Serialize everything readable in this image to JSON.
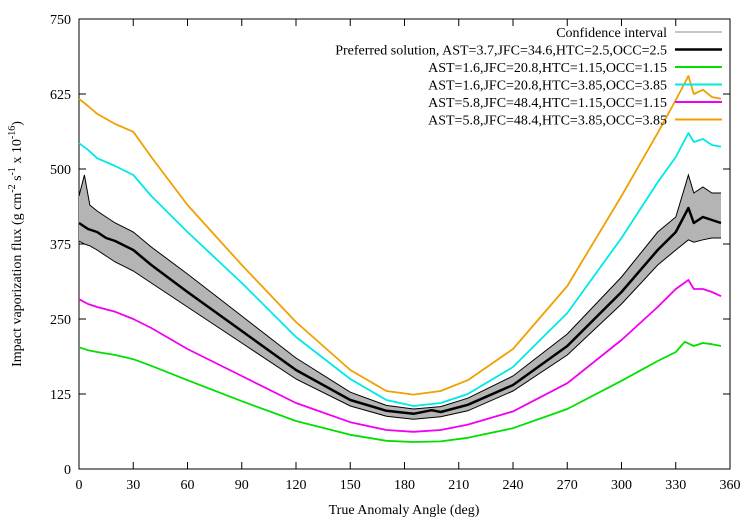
{
  "chart_data": {
    "type": "line",
    "xlabel": "True Anomaly Angle (deg)",
    "ylabel": "Impact vaporization flux (g cm",
    "ylabel_parts": {
      "a": "Impact vaporization flux (g cm",
      "exp1": "-2",
      "b": " s",
      "exp2": "-1",
      "c": " x 10",
      "exp3": "-16",
      "d": ")"
    },
    "xlim": [
      0,
      360
    ],
    "ylim": [
      0,
      750
    ],
    "xticks": [
      0,
      30,
      60,
      90,
      120,
      150,
      180,
      210,
      240,
      270,
      300,
      330,
      360
    ],
    "xtick_labels": [
      "0",
      "30",
      "60",
      "90",
      "120",
      "150",
      "180",
      "210",
      "240",
      "270",
      "300",
      "330",
      "360"
    ],
    "yticks": [
      0,
      125,
      250,
      375,
      500,
      625,
      750
    ],
    "ytick_labels": [
      "0",
      "125",
      "250",
      "375",
      "500",
      "625",
      "750"
    ],
    "legend_position": "top-right",
    "confidence_interval": {
      "name": "Confidence interval",
      "color": "#b4b4b4",
      "x": [
        0,
        3,
        6,
        10,
        15,
        20,
        30,
        40,
        60,
        90,
        120,
        150,
        170,
        185,
        200,
        215,
        240,
        270,
        300,
        320,
        330,
        337,
        340,
        345,
        350,
        355
      ],
      "lower": [
        380,
        375,
        372,
        365,
        355,
        345,
        330,
        310,
        270,
        210,
        150,
        105,
        88,
        83,
        87,
        97,
        130,
        190,
        275,
        340,
        365,
        382,
        378,
        382,
        385,
        385
      ],
      "upper": [
        455,
        490,
        440,
        430,
        420,
        410,
        395,
        370,
        325,
        255,
        185,
        128,
        106,
        100,
        104,
        118,
        155,
        225,
        320,
        395,
        420,
        490,
        460,
        470,
        460,
        460
      ]
    },
    "series": [
      {
        "name": "Preferred solution, AST=3.7,JFC=34.6,HTC=2.5,OCC=2.5",
        "color": "#000000",
        "x": [
          0,
          5,
          10,
          15,
          20,
          30,
          40,
          60,
          90,
          120,
          150,
          170,
          185,
          195,
          200,
          215,
          240,
          270,
          300,
          320,
          330,
          337,
          340,
          345,
          350,
          355
        ],
        "y": [
          410,
          400,
          395,
          385,
          380,
          365,
          340,
          295,
          230,
          165,
          115,
          97,
          92,
          98,
          95,
          107,
          140,
          205,
          295,
          365,
          395,
          435,
          410,
          420,
          415,
          410
        ]
      },
      {
        "name": "AST=1.6,JFC=20.8,HTC=1.15,OCC=1.15",
        "color": "#00e000",
        "x": [
          0,
          5,
          10,
          20,
          30,
          40,
          60,
          90,
          120,
          150,
          170,
          185,
          200,
          215,
          240,
          270,
          300,
          320,
          330,
          335,
          340,
          345,
          350,
          355
        ],
        "y": [
          203,
          198,
          195,
          190,
          183,
          172,
          148,
          113,
          80,
          57,
          47,
          45,
          46,
          52,
          68,
          100,
          147,
          180,
          195,
          212,
          205,
          210,
          208,
          205
        ]
      },
      {
        "name": "AST=1.6,JFC=20.8,HTC=3.85,OCC=3.85",
        "color": "#00e8e8",
        "x": [
          0,
          5,
          10,
          20,
          30,
          40,
          60,
          90,
          120,
          150,
          170,
          185,
          200,
          215,
          240,
          270,
          300,
          320,
          330,
          337,
          340,
          345,
          350,
          355
        ],
        "y": [
          543,
          532,
          518,
          505,
          490,
          455,
          395,
          310,
          220,
          150,
          115,
          105,
          110,
          125,
          170,
          260,
          385,
          478,
          520,
          560,
          545,
          550,
          540,
          537
        ]
      },
      {
        "name": "AST=5.8,JFC=48.4,HTC=1.15,OCC=1.15",
        "color": "#f000f0",
        "x": [
          0,
          5,
          10,
          20,
          30,
          40,
          60,
          90,
          120,
          150,
          170,
          185,
          200,
          215,
          240,
          270,
          300,
          320,
          330,
          337,
          340,
          345,
          350,
          355
        ],
        "y": [
          283,
          275,
          270,
          262,
          250,
          235,
          200,
          155,
          110,
          78,
          65,
          62,
          65,
          74,
          96,
          143,
          215,
          270,
          300,
          315,
          300,
          300,
          295,
          288
        ]
      },
      {
        "name": "AST=5.8,JFC=48.4,HTC=3.85,OCC=3.85",
        "color": "#f0a000",
        "x": [
          0,
          5,
          10,
          20,
          30,
          40,
          60,
          90,
          120,
          150,
          170,
          185,
          200,
          215,
          240,
          270,
          300,
          320,
          330,
          337,
          340,
          345,
          350,
          355
        ],
        "y": [
          617,
          605,
          592,
          575,
          562,
          520,
          440,
          340,
          245,
          165,
          130,
          124,
          130,
          148,
          200,
          305,
          455,
          560,
          615,
          655,
          625,
          632,
          620,
          617
        ]
      }
    ]
  }
}
